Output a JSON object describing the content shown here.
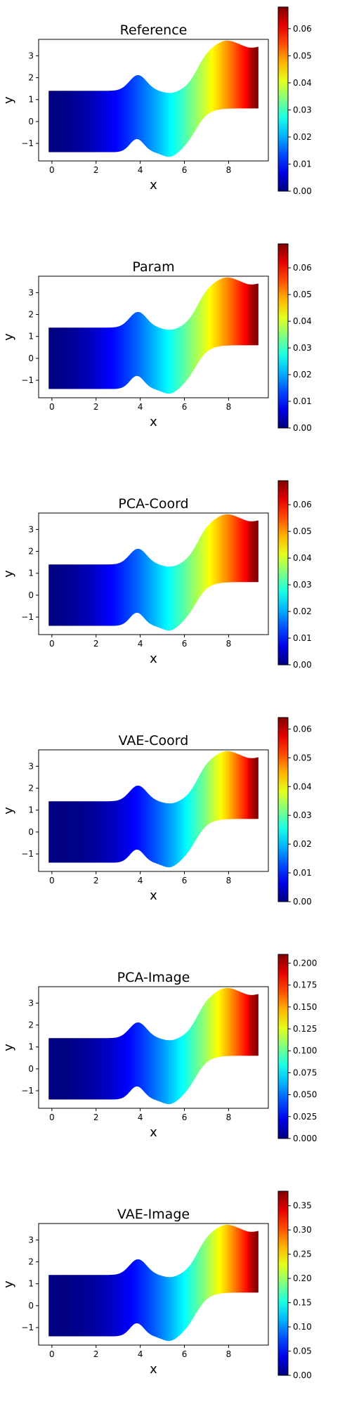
{
  "chart_data": [
    {
      "type": "heatmap",
      "title": "Reference",
      "xlabel": "x",
      "ylabel": "y",
      "xlim": [
        -0.6,
        9.8
      ],
      "ylim": [
        -1.8,
        3.75
      ],
      "xticks": [
        "0",
        "2",
        "4",
        "6",
        "8"
      ],
      "yticks": [
        "−1",
        "0",
        "1",
        "2",
        "3"
      ],
      "colorbar": {
        "min": 0.0,
        "max": 0.068,
        "ticks": [
          "0.00",
          "0.01",
          "0.02",
          "0.03",
          "0.04",
          "0.05",
          "0.06"
        ],
        "colormap": "jet"
      },
      "field": {
        "hot_x": 9.3,
        "exponent": 1.8
      }
    },
    {
      "type": "heatmap",
      "title": "Param",
      "xlabel": "x",
      "ylabel": "y",
      "xlim": [
        -0.6,
        9.8
      ],
      "ylim": [
        -1.8,
        3.75
      ],
      "xticks": [
        "0",
        "2",
        "4",
        "6",
        "8"
      ],
      "yticks": [
        "−1",
        "0",
        "1",
        "2",
        "3"
      ],
      "colorbar": {
        "min": 0.0,
        "max": 0.069,
        "ticks": [
          "0.00",
          "0.01",
          "0.02",
          "0.03",
          "0.04",
          "0.05",
          "0.06"
        ],
        "colormap": "jet"
      },
      "field": {
        "hot_x": 9.3,
        "exponent": 1.7
      }
    },
    {
      "type": "heatmap",
      "title": "PCA-Coord",
      "xlabel": "x",
      "ylabel": "y",
      "xlim": [
        -0.6,
        9.8
      ],
      "ylim": [
        -1.8,
        3.75
      ],
      "xticks": [
        "0",
        "2",
        "4",
        "6",
        "8"
      ],
      "yticks": [
        "−1",
        "0",
        "1",
        "2",
        "3"
      ],
      "colorbar": {
        "min": 0.0,
        "max": 0.069,
        "ticks": [
          "0.00",
          "0.01",
          "0.02",
          "0.03",
          "0.04",
          "0.05",
          "0.06"
        ],
        "colormap": "jet"
      },
      "field": {
        "hot_x": 9.3,
        "exponent": 1.7
      }
    },
    {
      "type": "heatmap",
      "title": "VAE-Coord",
      "xlabel": "x",
      "ylabel": "y",
      "xlim": [
        -0.6,
        9.8
      ],
      "ylim": [
        -1.8,
        3.75
      ],
      "xticks": [
        "0",
        "2",
        "4",
        "6",
        "8"
      ],
      "yticks": [
        "−1",
        "0",
        "1",
        "2",
        "3"
      ],
      "colorbar": {
        "min": 0.0,
        "max": 0.064,
        "ticks": [
          "0.00",
          "0.01",
          "0.02",
          "0.03",
          "0.04",
          "0.05",
          "0.06"
        ],
        "colormap": "jet"
      },
      "field": {
        "hot_x": 9.3,
        "exponent": 2.3
      }
    },
    {
      "type": "heatmap",
      "title": "PCA-Image",
      "xlabel": "x",
      "ylabel": "y",
      "xlim": [
        -0.6,
        9.8
      ],
      "ylim": [
        -1.8,
        3.75
      ],
      "xticks": [
        "0",
        "2",
        "4",
        "6",
        "8"
      ],
      "yticks": [
        "−1",
        "0",
        "1",
        "2",
        "3"
      ],
      "colorbar": {
        "min": 0.0,
        "max": 0.21,
        "ticks": [
          "0.000",
          "0.025",
          "0.050",
          "0.075",
          "0.100",
          "0.125",
          "0.150",
          "0.175",
          "0.200"
        ],
        "colormap": "jet"
      },
      "field": {
        "hot_x": 9.3,
        "exponent": 2.1
      }
    },
    {
      "type": "heatmap",
      "title": "VAE-Image",
      "xlabel": "x",
      "ylabel": "y",
      "xlim": [
        -0.6,
        9.8
      ],
      "ylim": [
        -1.8,
        3.75
      ],
      "xticks": [
        "0",
        "2",
        "4",
        "6",
        "8"
      ],
      "yticks": [
        "−1",
        "0",
        "1",
        "2",
        "3"
      ],
      "colorbar": {
        "min": 0.0,
        "max": 0.38,
        "ticks": [
          "0.00",
          "0.05",
          "0.10",
          "0.15",
          "0.20",
          "0.25",
          "0.30",
          "0.35"
        ],
        "colormap": "jet"
      },
      "field": {
        "hot_x": 9.3,
        "exponent": 2.2
      }
    }
  ]
}
